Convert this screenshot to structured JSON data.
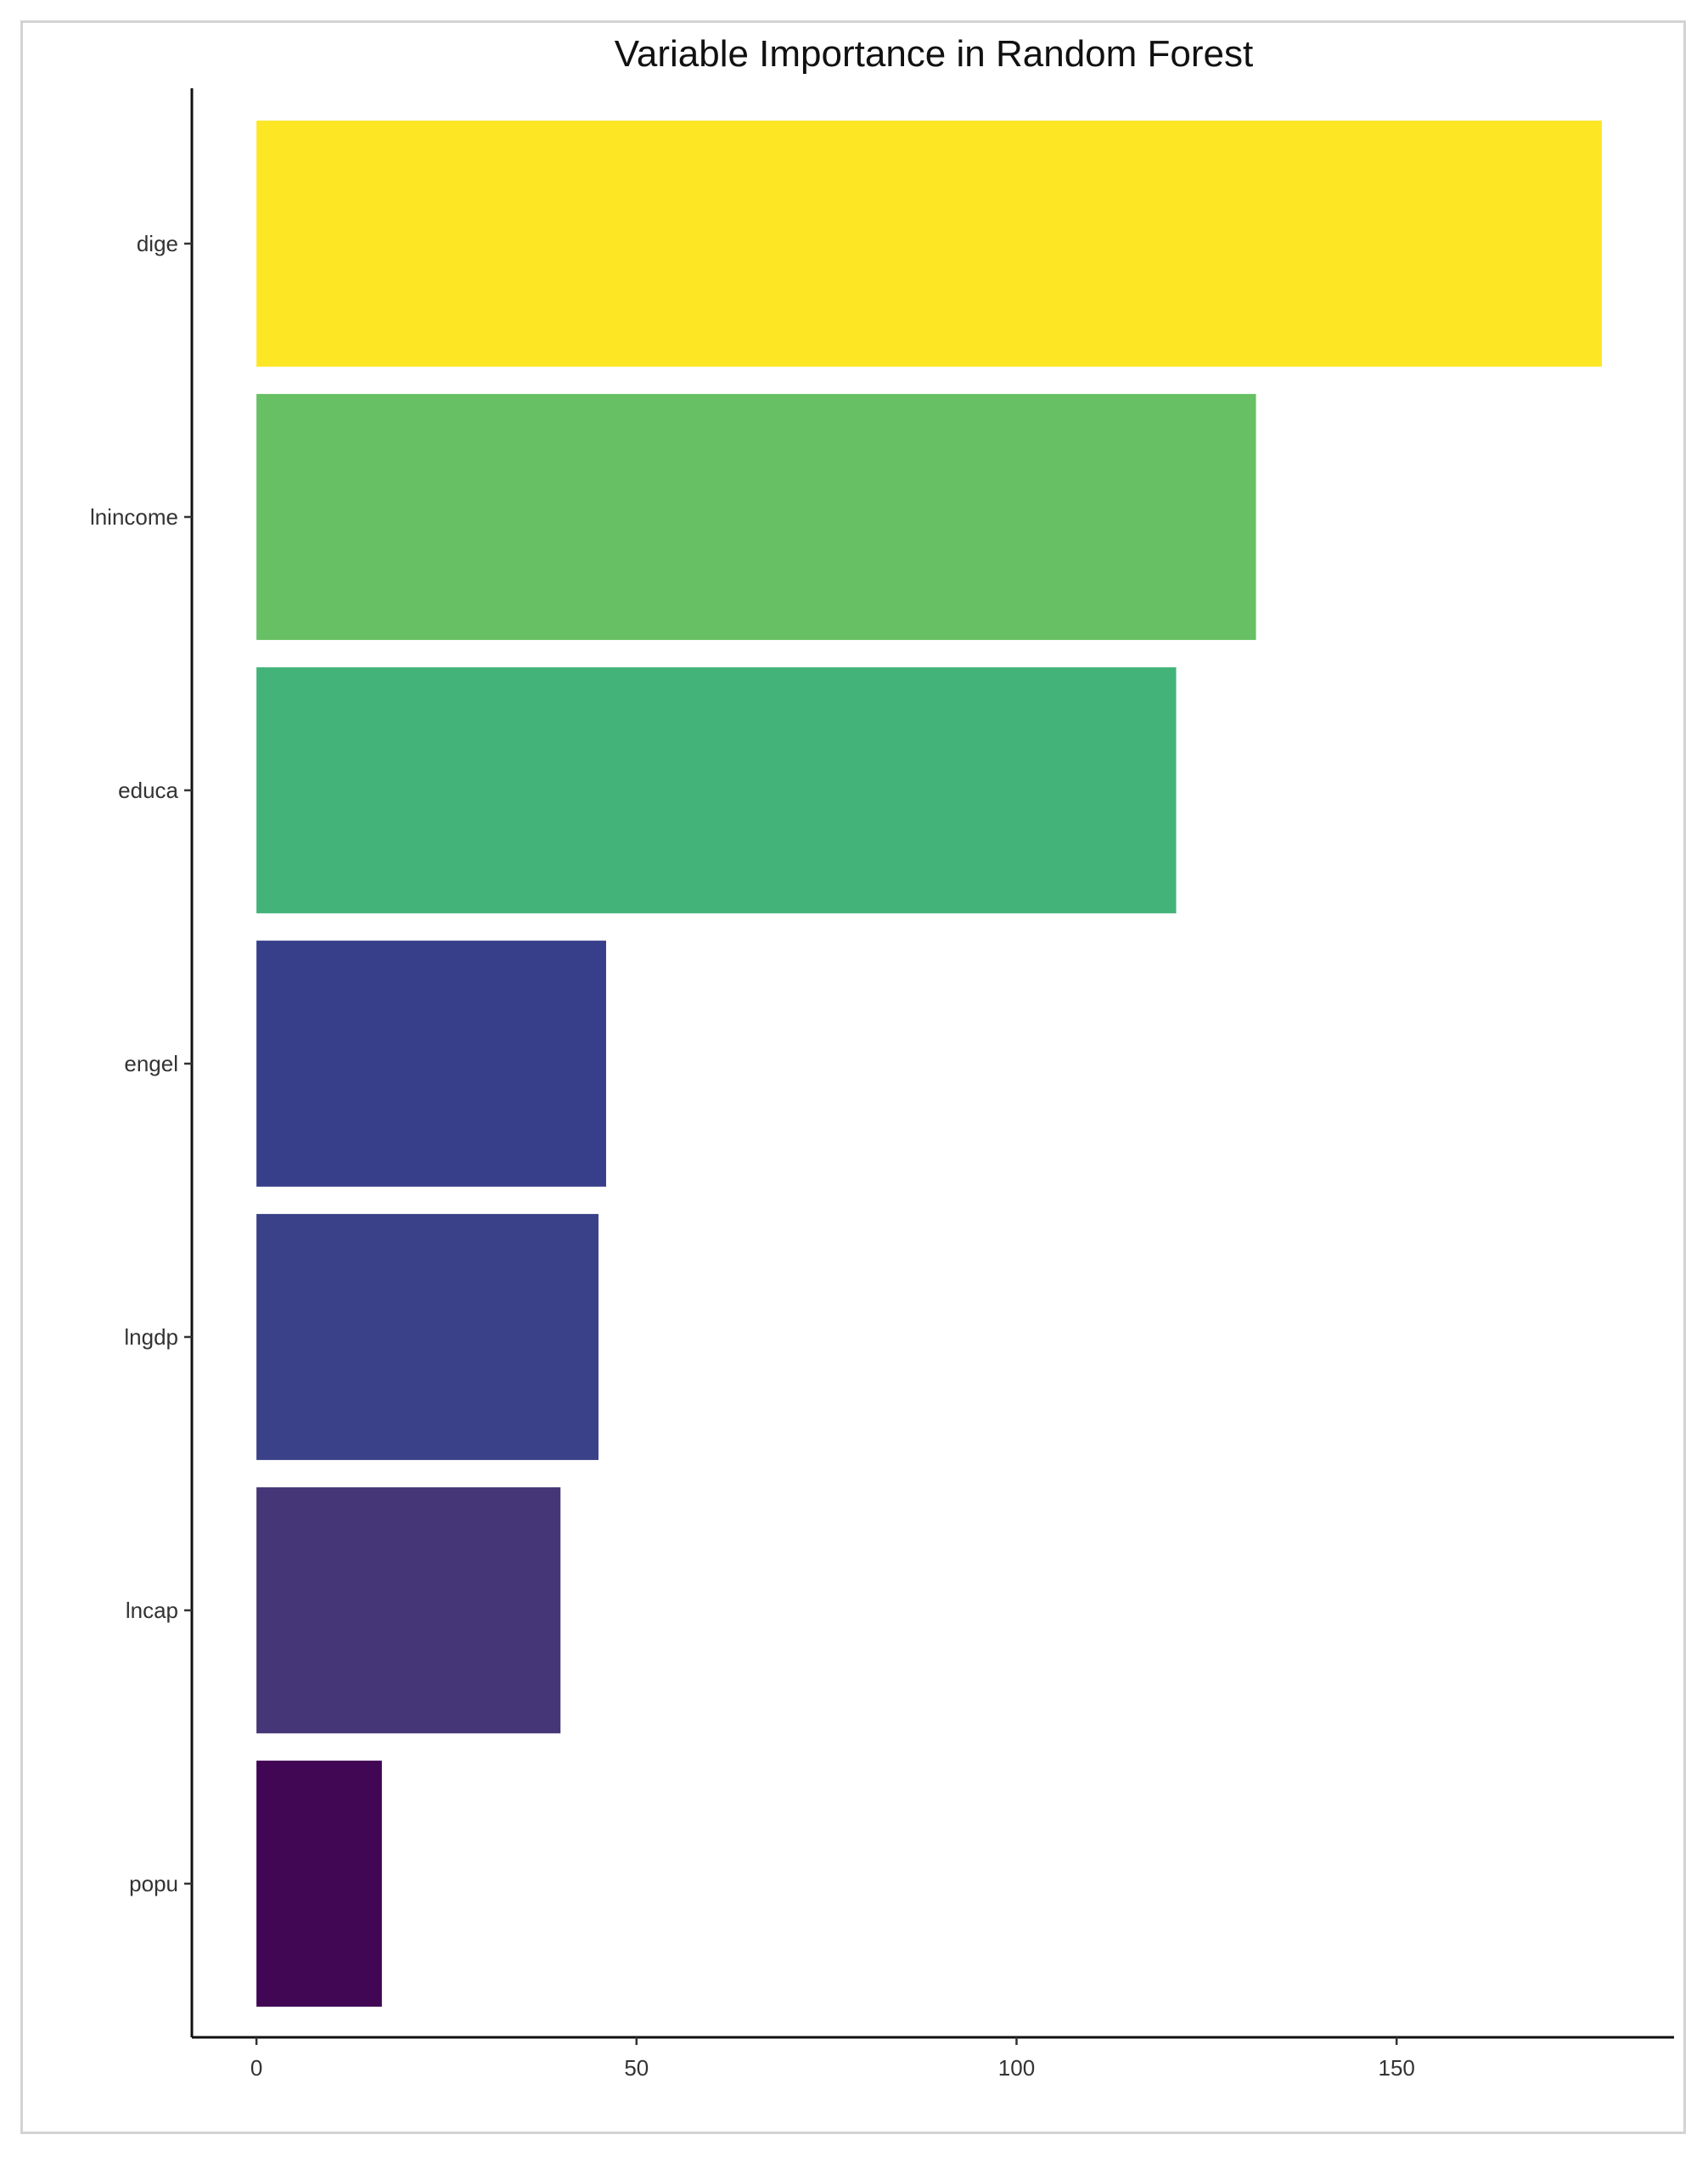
{
  "chart_data": {
    "type": "bar",
    "orientation": "horizontal",
    "title": "Variable Importance in Random Forest",
    "xlabel": "",
    "ylabel": "",
    "categories": [
      "dige",
      "lnincome",
      "educa",
      "engel",
      "lngdp",
      "lncap",
      "popu"
    ],
    "values": [
      177,
      131.5,
      121,
      46,
      45,
      40,
      16.5
    ],
    "colors": [
      "#FDE725",
      "#67C063",
      "#43B379",
      "#373F8A",
      "#3A4188",
      "#453677",
      "#410654"
    ],
    "xlim": [
      -8.5,
      186.5
    ],
    "xticks": [
      0,
      50,
      100,
      150
    ],
    "grid": false,
    "legend": "none"
  }
}
